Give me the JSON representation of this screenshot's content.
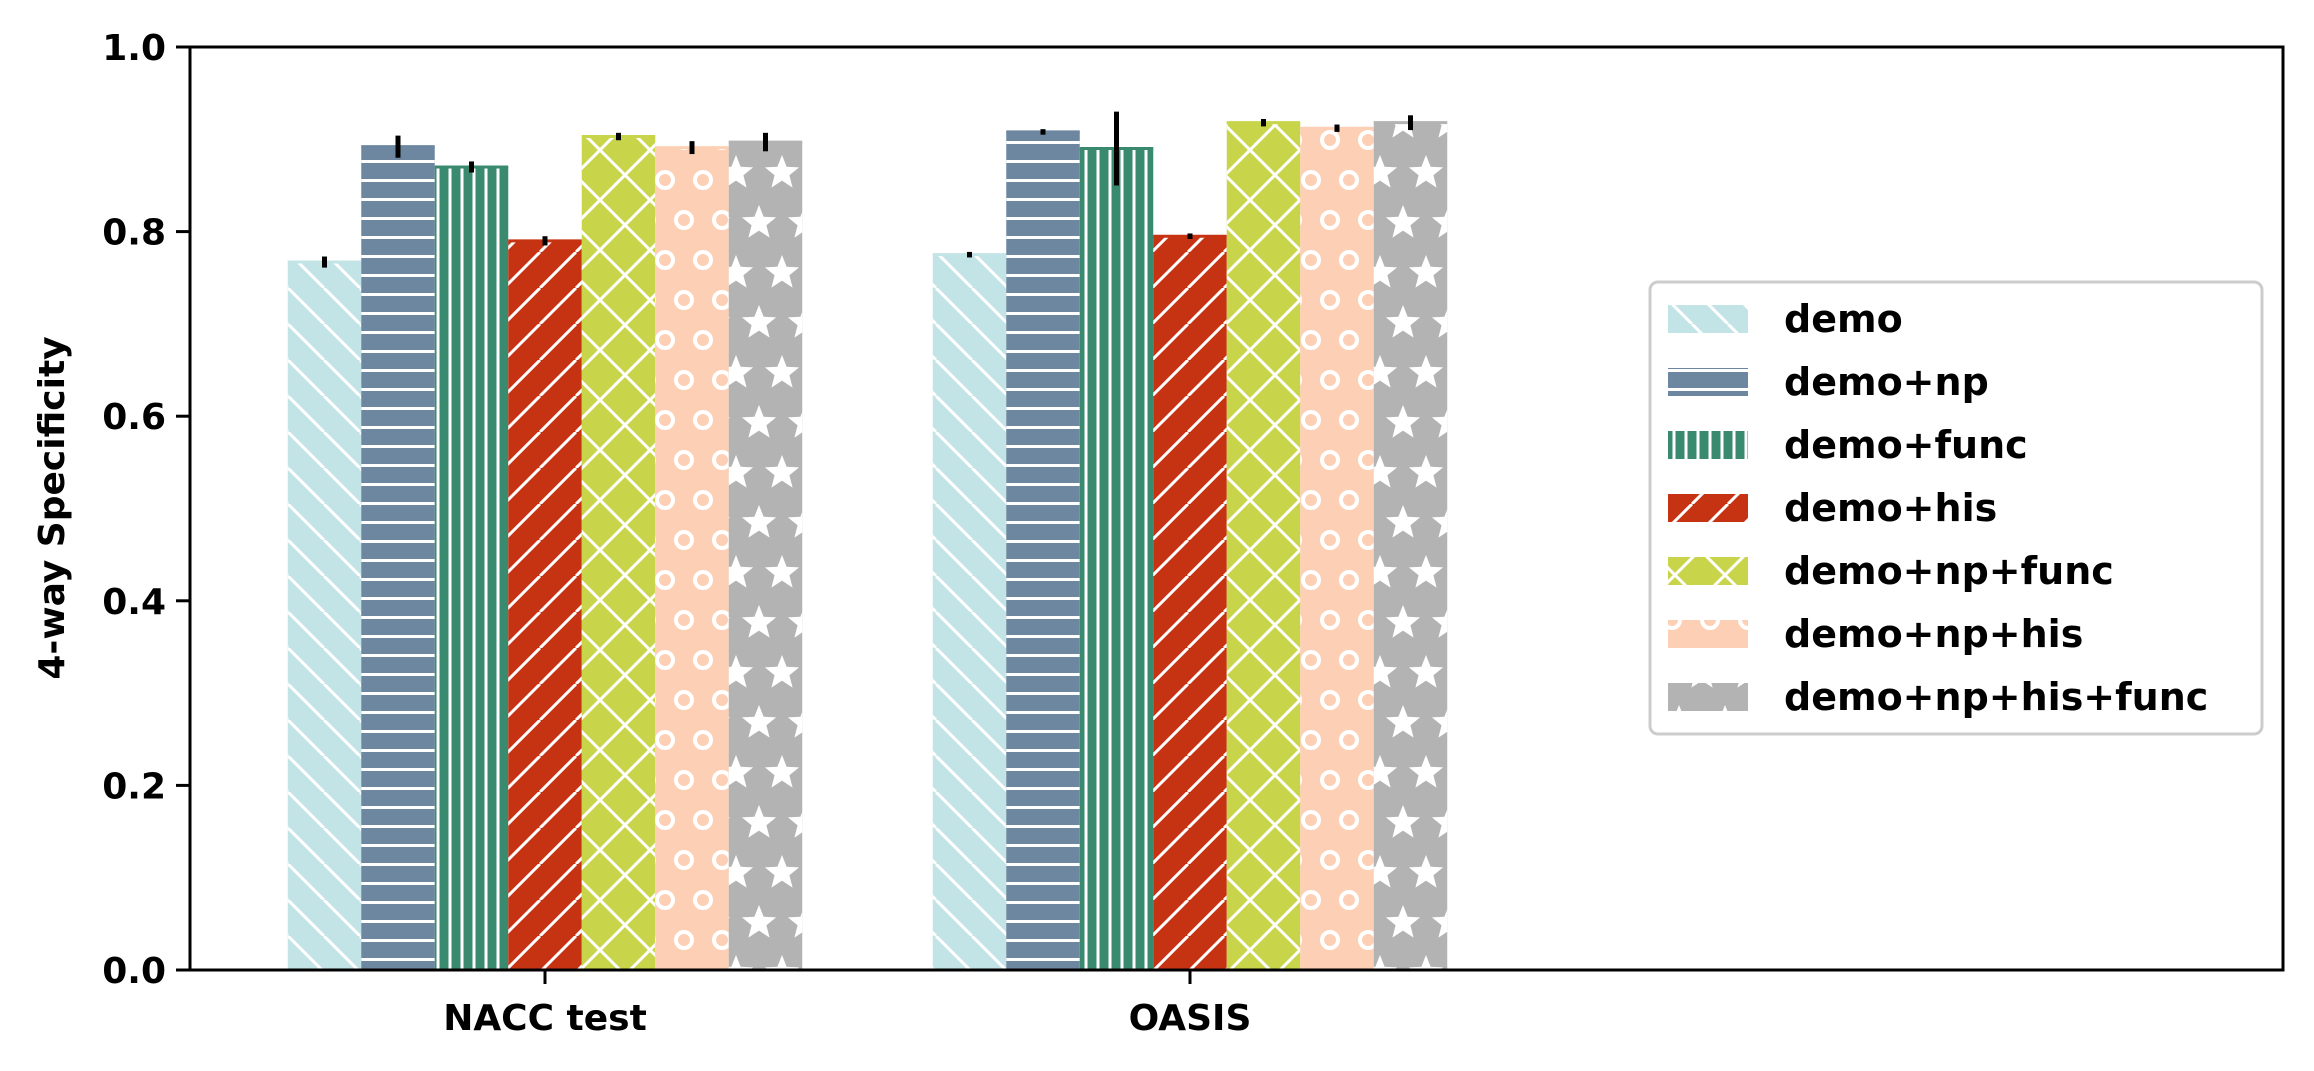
{
  "chart_data": {
    "type": "bar",
    "title": "",
    "xlabel": "",
    "ylabel": "4-way Specificity",
    "ylim": [
      0,
      1
    ],
    "yticks": [
      "0.0",
      "0.2",
      "0.4",
      "0.6",
      "0.8",
      "1.0"
    ],
    "grid": false,
    "legend_position": "center-right",
    "categories": [
      "NACC test",
      "OASIS"
    ],
    "series": [
      {
        "name": "demo",
        "values": [
          0.767,
          0.775
        ],
        "error": [
          0.006,
          0.003
        ],
        "color": "#c2e4e6",
        "hatch": "diag-back"
      },
      {
        "name": "demo+np",
        "values": [
          0.892,
          0.908
        ],
        "error": [
          0.012,
          0.003
        ],
        "color": "#6e87a0",
        "hatch": "horizontal"
      },
      {
        "name": "demo+func",
        "values": [
          0.87,
          0.89
        ],
        "error": [
          0.006,
          0.04
        ],
        "color": "#3a8a70",
        "hatch": "vertical"
      },
      {
        "name": "demo+his",
        "values": [
          0.79,
          0.795
        ],
        "error": [
          0.005,
          0.003
        ],
        "color": "#c63313",
        "hatch": "diag-forward"
      },
      {
        "name": "demo+np+func",
        "values": [
          0.903,
          0.918
        ],
        "error": [
          0.004,
          0.004
        ],
        "color": "#c8d54a",
        "hatch": "cross"
      },
      {
        "name": "demo+np+his",
        "values": [
          0.891,
          0.912
        ],
        "error": [
          0.007,
          0.004
        ],
        "color": "#fdd0b5",
        "hatch": "circles"
      },
      {
        "name": "demo+np+his+func",
        "values": [
          0.897,
          0.918
        ],
        "error": [
          0.01,
          0.008
        ],
        "color": "#b3b3b3",
        "hatch": "stars"
      }
    ]
  }
}
